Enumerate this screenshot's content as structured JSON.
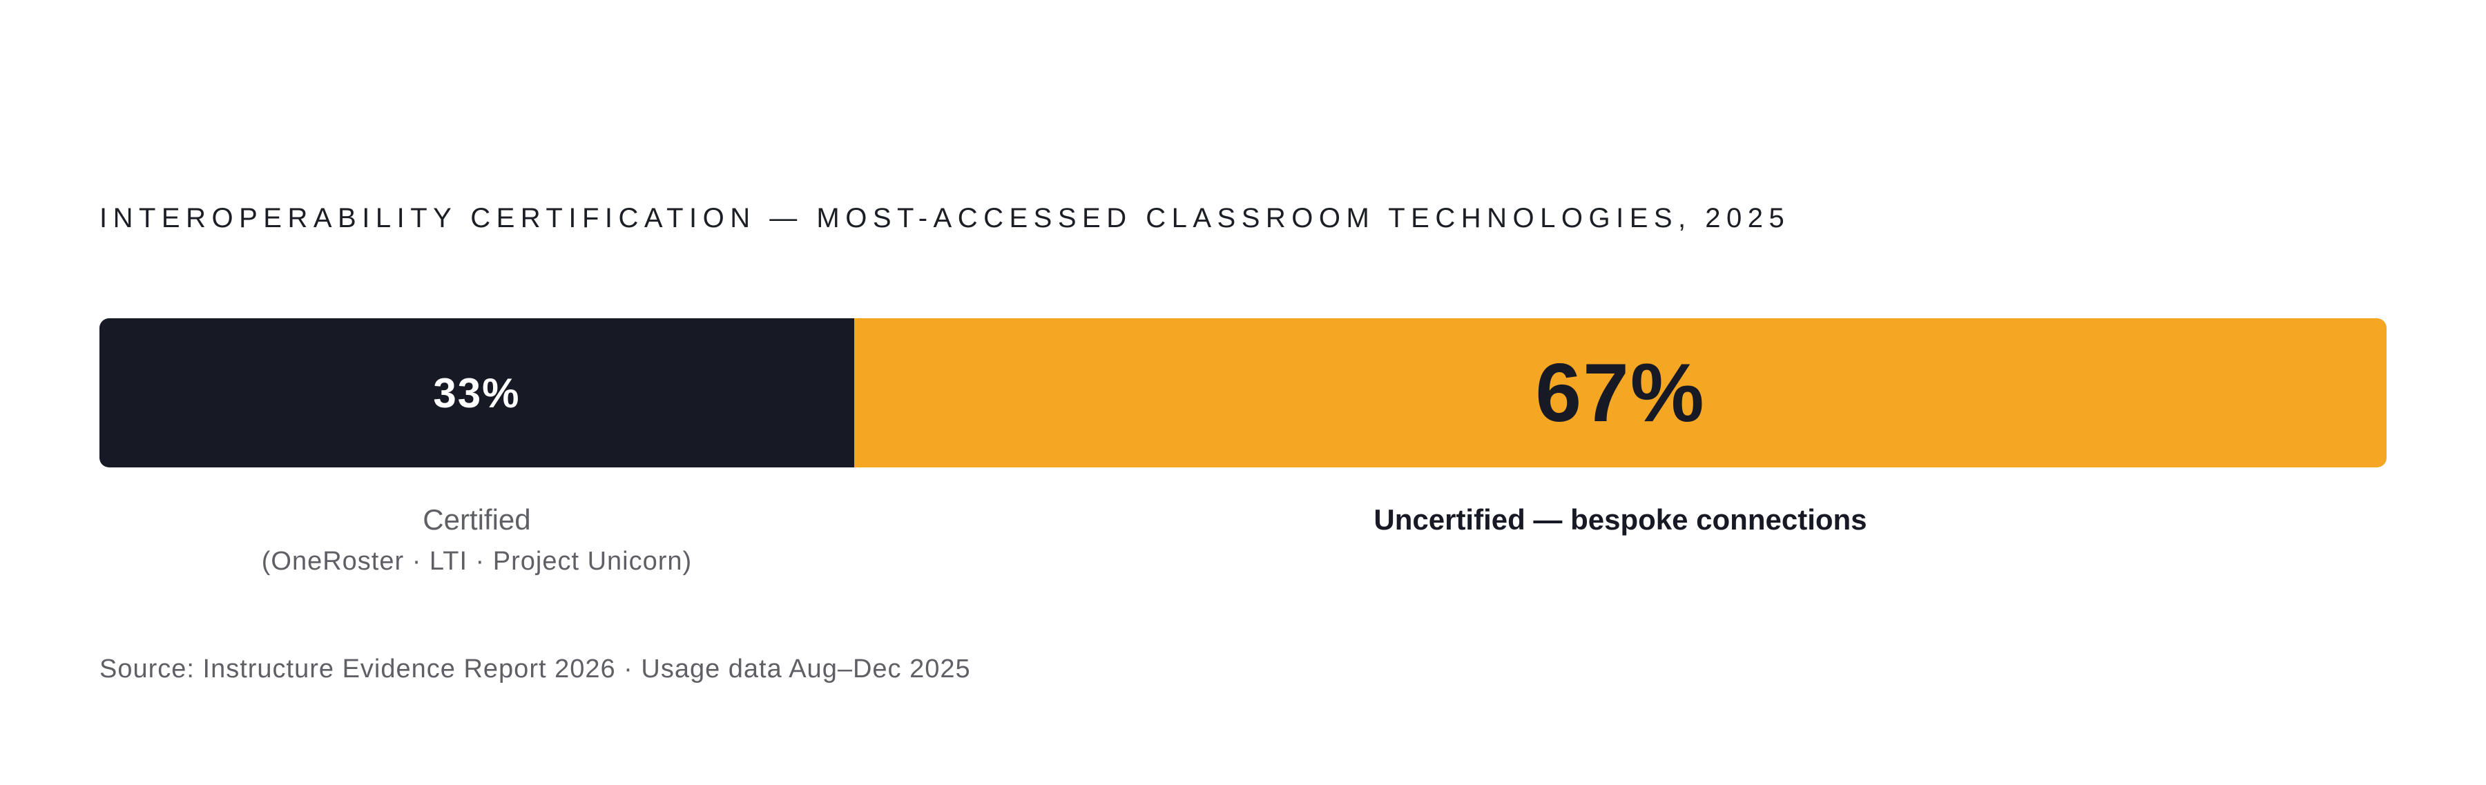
{
  "title": "INTEROPERABILITY CERTIFICATION — MOST-ACCESSED CLASSROOM TECHNOLOGIES, 2025",
  "source": "Source: Instructure Evidence Report 2026 · Usage data Aug–Dec 2025",
  "colors": {
    "certified": "#171a24",
    "uncertified": "#f5a623"
  },
  "chart_data": {
    "type": "bar",
    "orientation": "horizontal-stacked-100",
    "title": "INTEROPERABILITY CERTIFICATION — MOST-ACCESSED CLASSROOM TECHNOLOGIES, 2025",
    "unit": "%",
    "segments": [
      {
        "key": "certified",
        "value": 33,
        "value_label": "33%",
        "label": "Certified",
        "sublabel": "(OneRoster · LTI · Project Unicorn)",
        "color": "#171a24"
      },
      {
        "key": "uncertified",
        "value": 67,
        "value_label": "67%",
        "label": "Uncertified — bespoke connections",
        "color": "#f5a623"
      }
    ]
  }
}
